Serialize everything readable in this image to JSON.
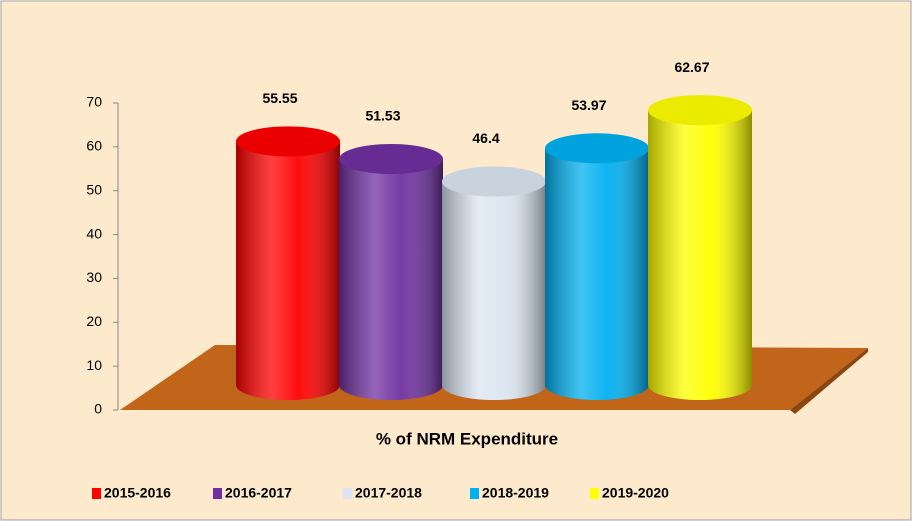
{
  "chart_data": {
    "type": "cylinder-bar",
    "categories": [
      "% of NRM Expenditure"
    ],
    "series": [
      {
        "name": "2015-2016",
        "color": "#ff0000",
        "values": [
          55.55
        ]
      },
      {
        "name": "2016-2017",
        "color": "#7030a0",
        "values": [
          51.53
        ]
      },
      {
        "name": "2017-2018",
        "color": "#dbe5f1",
        "values": [
          46.4
        ]
      },
      {
        "name": "2018-2019",
        "color": "#00b0f0",
        "values": [
          53.97
        ]
      },
      {
        "name": "2019-2020",
        "color": "#ffff00",
        "values": [
          62.67
        ]
      }
    ],
    "ylim": [
      0,
      70
    ],
    "yticks": [
      0,
      10,
      20,
      30,
      40,
      50,
      60,
      70
    ],
    "grid": false,
    "legend": "bottom"
  }
}
